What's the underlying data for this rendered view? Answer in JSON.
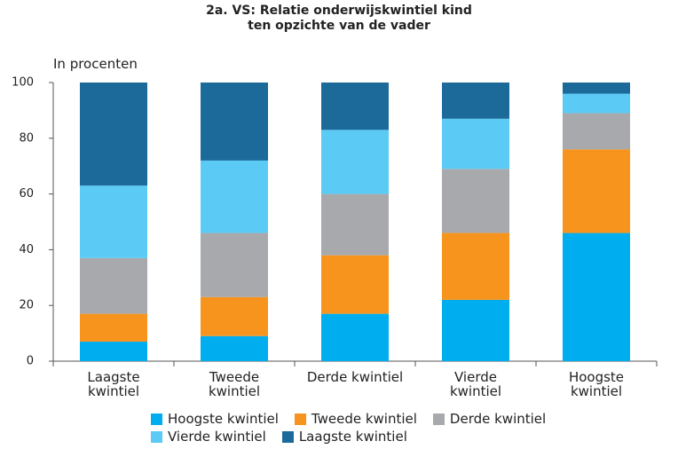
{
  "chart_data": {
    "type": "stacked_bar",
    "title": "2a. VS: Relatie onderwijskwintiel kind ten opzichte van de vader",
    "y_label": "In procenten",
    "categories": [
      "Laagste kwintiel",
      "Tweede kwintiel",
      "Derde kwintiel",
      "Vierde kwintiel",
      "Hoogste kwintiel"
    ],
    "series": [
      {
        "name": "Hoogste kwintiel",
        "color": "#00aeef",
        "values": [
          7,
          9,
          17,
          22,
          46
        ]
      },
      {
        "name": "Tweede kwintiel",
        "color": "#f7941d",
        "values": [
          10,
          14,
          21,
          24,
          30
        ]
      },
      {
        "name": "Derde kwintiel",
        "color": "#a7a9ac",
        "values": [
          20,
          23,
          22,
          23,
          13
        ]
      },
      {
        "name": "Vierde kwintiel",
        "color": "#5bcbf5",
        "values": [
          26,
          26,
          23,
          18,
          7
        ]
      },
      {
        "name": "Laagste kwintiel",
        "color": "#1b6a9a",
        "values": [
          37,
          28,
          17,
          13,
          4
        ]
      }
    ],
    "ylim": [
      0,
      100
    ],
    "yticks": [
      0,
      20,
      40,
      60,
      80,
      100
    ],
    "grid": false
  }
}
